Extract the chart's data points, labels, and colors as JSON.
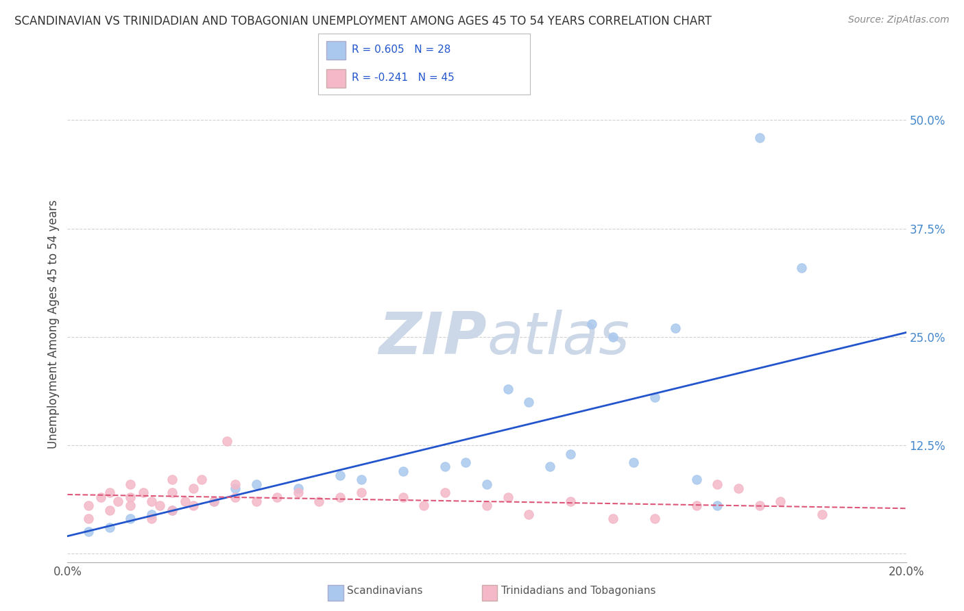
{
  "title": "SCANDINAVIAN VS TRINIDADIAN AND TOBAGONIAN UNEMPLOYMENT AMONG AGES 45 TO 54 YEARS CORRELATION CHART",
  "source": "Source: ZipAtlas.com",
  "ylabel": "Unemployment Among Ages 45 to 54 years",
  "x_min": 0.0,
  "x_max": 0.2,
  "y_min": -0.01,
  "y_max": 0.54,
  "x_ticks": [
    0.0,
    0.05,
    0.1,
    0.15,
    0.2
  ],
  "x_tick_labels": [
    "0.0%",
    "",
    "",
    "",
    "20.0%"
  ],
  "y_ticks": [
    0.0,
    0.125,
    0.25,
    0.375,
    0.5
  ],
  "y_tick_labels": [
    "",
    "12.5%",
    "25.0%",
    "37.5%",
    "50.0%"
  ],
  "legend_blue_r": "R = 0.605",
  "legend_blue_n": "N = 28",
  "legend_pink_r": "R = -0.241",
  "legend_pink_n": "N = 45",
  "legend_blue_label": "Scandinavians",
  "legend_pink_label": "Trinidadians and Tobagonians",
  "blue_scatter_x": [
    0.005,
    0.01,
    0.015,
    0.02,
    0.025,
    0.035,
    0.04,
    0.045,
    0.055,
    0.065,
    0.07,
    0.08,
    0.09,
    0.095,
    0.1,
    0.105,
    0.11,
    0.115,
    0.12,
    0.125,
    0.13,
    0.135,
    0.14,
    0.145,
    0.15,
    0.155,
    0.165,
    0.175
  ],
  "blue_scatter_y": [
    0.025,
    0.03,
    0.04,
    0.045,
    0.05,
    0.06,
    0.075,
    0.08,
    0.075,
    0.09,
    0.085,
    0.095,
    0.1,
    0.105,
    0.08,
    0.19,
    0.175,
    0.1,
    0.115,
    0.265,
    0.25,
    0.105,
    0.18,
    0.26,
    0.085,
    0.055,
    0.48,
    0.33
  ],
  "pink_scatter_x": [
    0.005,
    0.005,
    0.008,
    0.01,
    0.01,
    0.012,
    0.015,
    0.015,
    0.015,
    0.018,
    0.02,
    0.02,
    0.022,
    0.025,
    0.025,
    0.025,
    0.028,
    0.03,
    0.03,
    0.032,
    0.035,
    0.038,
    0.04,
    0.04,
    0.045,
    0.05,
    0.055,
    0.06,
    0.065,
    0.07,
    0.08,
    0.085,
    0.09,
    0.1,
    0.105,
    0.11,
    0.12,
    0.13,
    0.14,
    0.15,
    0.155,
    0.16,
    0.165,
    0.17,
    0.18
  ],
  "pink_scatter_y": [
    0.04,
    0.055,
    0.065,
    0.05,
    0.07,
    0.06,
    0.055,
    0.065,
    0.08,
    0.07,
    0.04,
    0.06,
    0.055,
    0.07,
    0.05,
    0.085,
    0.06,
    0.055,
    0.075,
    0.085,
    0.06,
    0.13,
    0.065,
    0.08,
    0.06,
    0.065,
    0.07,
    0.06,
    0.065,
    0.07,
    0.065,
    0.055,
    0.07,
    0.055,
    0.065,
    0.045,
    0.06,
    0.04,
    0.04,
    0.055,
    0.08,
    0.075,
    0.055,
    0.06,
    0.045
  ],
  "blue_line_x": [
    0.0,
    0.2
  ],
  "blue_line_y": [
    0.02,
    0.255
  ],
  "pink_line_x": [
    0.0,
    0.2
  ],
  "pink_line_y": [
    0.068,
    0.052
  ],
  "blue_color": "#aac8ed",
  "pink_color": "#f4b8c8",
  "blue_line_color": "#2255cc",
  "pink_line_color": "#dd5577",
  "grid_color": "#cccccc",
  "watermark_color": "#ccd8e8",
  "background_color": "#ffffff"
}
